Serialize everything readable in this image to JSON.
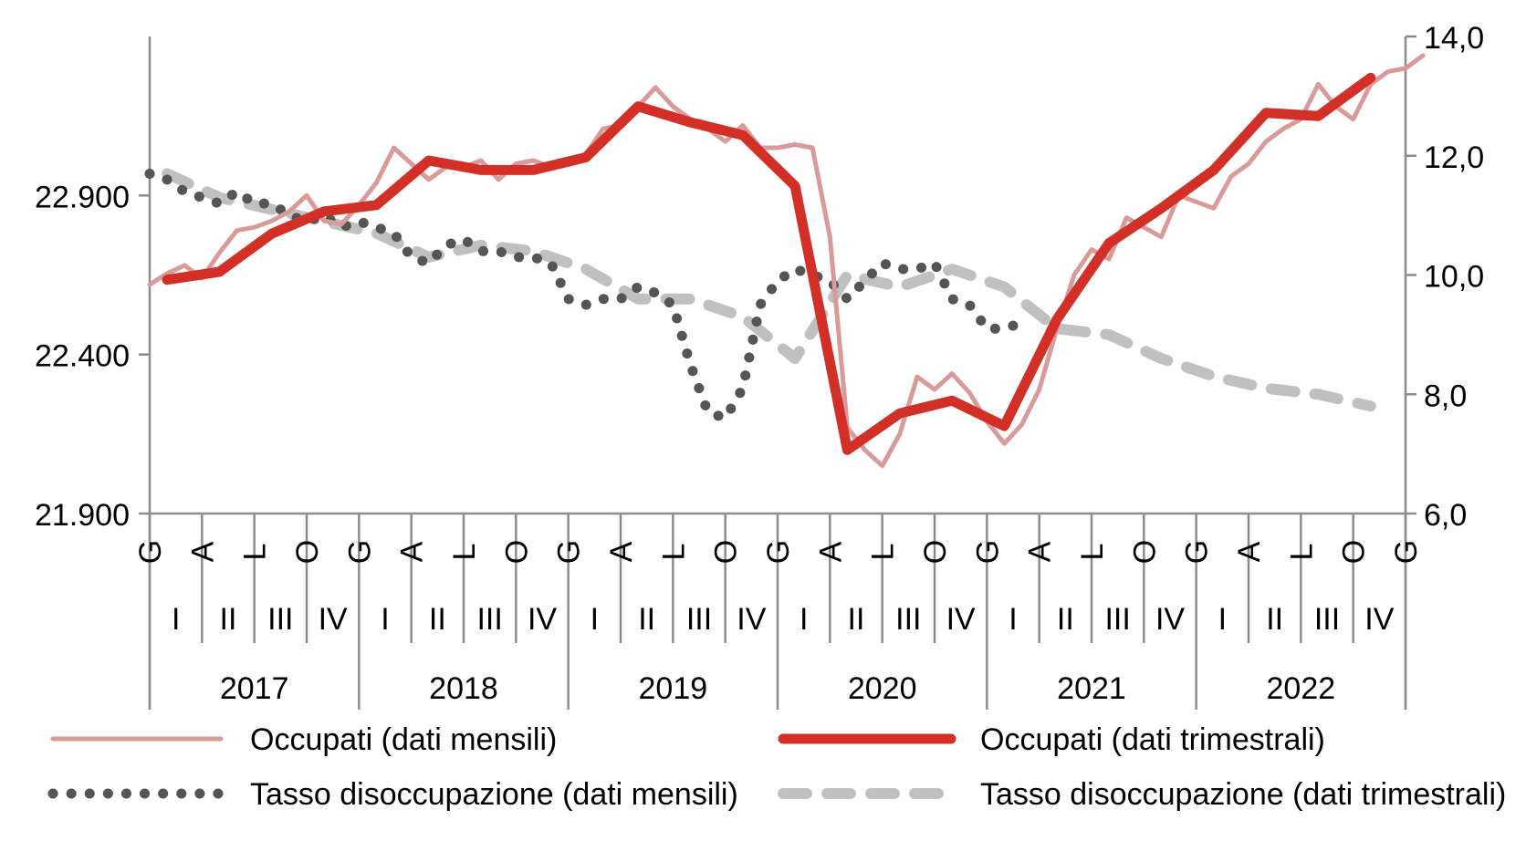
{
  "chart_data": {
    "type": "line",
    "title": "",
    "xlabel": "",
    "ylabel_left": "",
    "ylabel_right": "",
    "y_left": {
      "ylim": [
        21900,
        23400
      ],
      "ticks": [
        "21.900",
        "22.400",
        "22.900"
      ],
      "tick_values": [
        21900,
        22400,
        22900
      ]
    },
    "y_right": {
      "ylim": [
        6.0,
        14.0
      ],
      "ticks": [
        "6,0",
        "8,0",
        "10,0",
        "12,0",
        "14,0"
      ],
      "tick_values": [
        6,
        8,
        10,
        12,
        14
      ]
    },
    "x_axis": {
      "month_labels": [
        "G",
        "A",
        "L",
        "O",
        "G",
        "A",
        "L",
        "O",
        "G",
        "A",
        "L",
        "O",
        "G",
        "A",
        "L",
        "O",
        "G",
        "A",
        "L",
        "O",
        "G",
        "A",
        "L",
        "O",
        "G"
      ],
      "quarter_labels": [
        "I",
        "II",
        "III",
        "IV",
        "I",
        "II",
        "III",
        "IV",
        "I",
        "II",
        "III",
        "IV",
        "I",
        "II",
        "III",
        "IV",
        "I",
        "II",
        "III",
        "IV",
        "I",
        "II",
        "III",
        "IV"
      ],
      "years": [
        "2017",
        "2018",
        "2019",
        "2020",
        "2021",
        "2022"
      ]
    },
    "legend": {
      "position": "bottom",
      "entries": [
        {
          "label": "Occupati (dati mensili)",
          "color": "#d99a9a",
          "style": "solid-thin"
        },
        {
          "label": "Occupati (dati trimestrali)",
          "color": "#d22f27",
          "style": "solid-thick"
        },
        {
          "label": "Tasso disoccupazione (dati mensili)",
          "color": "#555555",
          "style": "dotted"
        },
        {
          "label": "Tasso disoccupazione (dati trimestrali)",
          "color": "#c0c0c0",
          "style": "dashed"
        }
      ]
    },
    "series": [
      {
        "name": "Occupati (dati mensili)",
        "axis": "left",
        "color": "#d99a9a",
        "x_start_month": 0,
        "values": [
          22620,
          22655,
          22680,
          22640,
          22720,
          22790,
          22800,
          22820,
          22850,
          22900,
          22820,
          22810,
          22870,
          22940,
          23050,
          23000,
          22950,
          22990,
          22990,
          23010,
          22950,
          23000,
          23010,
          22990,
          23010,
          23030,
          23110,
          23120,
          23180,
          23240,
          23180,
          23140,
          23110,
          23070,
          23120,
          23050,
          23050,
          23060,
          23050,
          22770,
          22170,
          22100,
          22050,
          22150,
          22330,
          22290,
          22340,
          22280,
          22190,
          22120,
          22180,
          22290,
          22480,
          22650,
          22730,
          22700,
          22830,
          22800,
          22770,
          22900,
          22880,
          22860,
          22960,
          23000,
          23070,
          23110,
          23140,
          23250,
          23180,
          23140,
          23250,
          23290,
          23300,
          23340
        ]
      },
      {
        "name": "Occupati (dati trimestrali)",
        "axis": "left",
        "color": "#d22f27",
        "x_start_month": 1,
        "values": [
          22635,
          22660,
          22780,
          22850,
          22870,
          23010,
          22980,
          22980,
          23020,
          23180,
          23130,
          23090,
          22930,
          22100,
          22215,
          22255,
          22175,
          22510,
          22750,
          22860,
          22980,
          23160,
          23150,
          23270
        ]
      },
      {
        "name": "Tasso disoccupazione (dati mensili)",
        "axis": "right",
        "color": "#555555",
        "x_start_month": 0,
        "values": [
          11.7,
          11.6,
          11.4,
          11.3,
          11.2,
          11.4,
          11.2,
          11.2,
          11.0,
          10.9,
          11.0,
          10.8,
          10.9,
          10.8,
          10.7,
          10.3,
          10.2,
          10.5,
          10.6,
          10.4,
          10.4,
          10.3,
          10.3,
          10.2,
          9.6,
          9.5,
          9.6,
          9.6,
          9.8,
          9.7,
          9.5,
          8.5,
          7.7,
          7.6,
          8.1,
          9.5,
          9.9,
          10.1,
          10.0,
          9.9,
          9.6,
          9.9,
          10.2,
          10.1,
          10.1,
          10.2,
          9.6,
          9.5,
          9.1,
          9.1,
          9.2
        ]
      },
      {
        "name": "Tasso disoccupazione (dati trimestrali)",
        "axis": "right",
        "color": "#c0c0c0",
        "x_start_month": 1,
        "values": [
          11.7,
          11.3,
          11.1,
          10.9,
          10.7,
          10.3,
          10.5,
          10.4,
          10.1,
          9.6,
          9.6,
          9.3,
          8.6,
          10.0,
          9.8,
          10.1,
          9.8,
          9.1,
          9.0,
          8.6,
          8.3,
          8.1,
          8.0,
          7.8
        ]
      }
    ]
  }
}
